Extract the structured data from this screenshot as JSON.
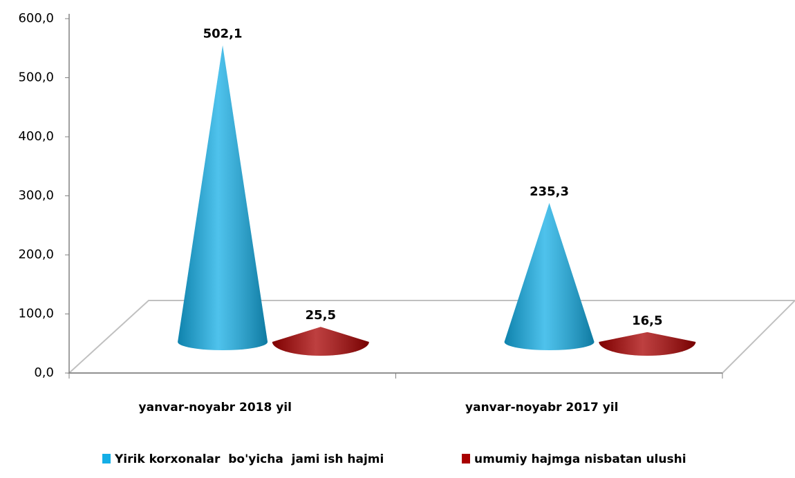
{
  "chart_data": {
    "type": "cone",
    "categories": [
      "yanvar-noyabr  2018 yil",
      "yanvar-noyabr  2017 yil"
    ],
    "series": [
      {
        "name": "Yirik korxonalar  bo'yicha  jami ish hajmi",
        "color": "#14aee6",
        "values": [
          502.1,
          235.3
        ],
        "value_labels": [
          "502,1",
          "235,3"
        ]
      },
      {
        "name": "umumiy hajmga nisbatan ulushi",
        "color": "#a80000",
        "values": [
          25.5,
          16.5
        ],
        "value_labels": [
          "25,5",
          "16,5"
        ]
      }
    ],
    "ylim": [
      0,
      600
    ],
    "yticks": [
      {
        "value": 0,
        "label": "0,0"
      },
      {
        "value": 100,
        "label": "100,0"
      },
      {
        "value": 200,
        "label": "200,0"
      },
      {
        "value": 300,
        "label": "300,0"
      },
      {
        "value": 400,
        "label": "400,0"
      },
      {
        "value": 500,
        "label": "500,0"
      },
      {
        "value": 600,
        "label": "600,0"
      }
    ],
    "legend": "bottom"
  }
}
